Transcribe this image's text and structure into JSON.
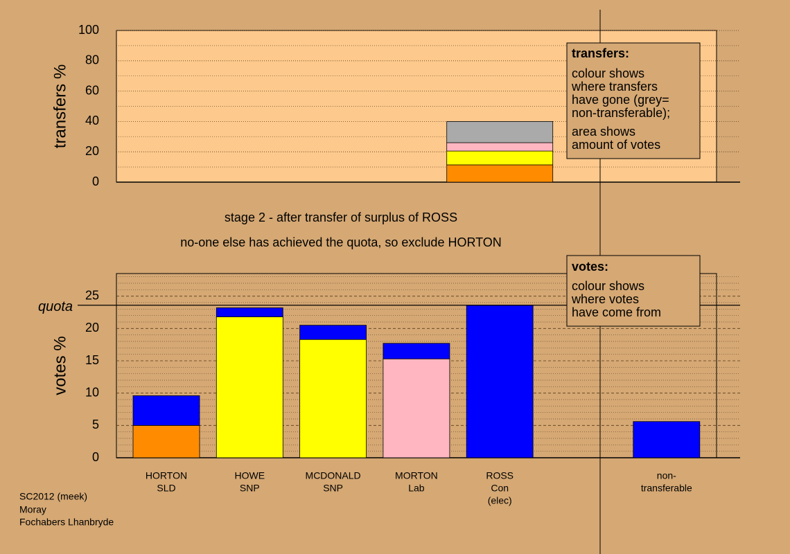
{
  "chart_data": [
    {
      "type": "bar",
      "stacked": true,
      "ylabel": "transfers %",
      "ylim": [
        0,
        100
      ],
      "yticks": [
        0,
        20,
        40,
        60,
        80,
        100
      ],
      "minor_yticks": [
        10,
        30,
        50,
        70,
        90
      ],
      "categories": [
        null,
        null,
        null,
        null,
        null,
        null,
        null
      ],
      "series": [
        {
          "color": "#ff8c00",
          "values": [
            null,
            null,
            null,
            null,
            11.4,
            null,
            null
          ]
        },
        {
          "color": "#ffff00",
          "values": [
            null,
            null,
            null,
            null,
            9.1,
            null,
            null
          ]
        },
        {
          "color": "#ffb6c1",
          "values": [
            null,
            null,
            null,
            null,
            5.5,
            null,
            null
          ]
        },
        {
          "color": "#aaaaaa",
          "values": [
            null,
            null,
            null,
            null,
            14.0,
            null,
            null
          ]
        }
      ],
      "note": {
        "title": "transfers:",
        "paragraphs": [
          [
            "colour shows",
            "where transfers",
            "have gone (grey=",
            "non-transferable);"
          ],
          [
            "area shows",
            "amount of votes"
          ]
        ]
      }
    },
    {
      "type": "bar",
      "stacked": true,
      "ylabel": "votes %",
      "ylim": [
        0,
        28.5
      ],
      "yticks": [
        0,
        5,
        10,
        15,
        20,
        25
      ],
      "minor_yticks": [
        1,
        2,
        3,
        4,
        6,
        7,
        8,
        9,
        11,
        12,
        13,
        14,
        16,
        17,
        18,
        19,
        21,
        22,
        23,
        24,
        26,
        27,
        28
      ],
      "quota": {
        "value": 23.6,
        "label": "quota"
      },
      "categories": [
        [
          "HORTON",
          "SLD"
        ],
        [
          "HOWE",
          "SNP"
        ],
        [
          "MCDONALD",
          "SNP"
        ],
        [
          "MORTON",
          "Lab"
        ],
        [
          "ROSS",
          "Con",
          "(elec)"
        ],
        null,
        [
          "non-",
          "transferable"
        ]
      ],
      "series": [
        {
          "color": "#ff8c00",
          "values": [
            5.0,
            null,
            null,
            null,
            null,
            null,
            null
          ]
        },
        {
          "color": "#ffff00",
          "values": [
            null,
            21.8,
            18.3,
            null,
            null,
            null,
            null
          ]
        },
        {
          "color": "#ffb6c1",
          "values": [
            null,
            null,
            null,
            15.3,
            null,
            null,
            null
          ]
        },
        {
          "color": "#0000ff",
          "values": [
            4.6,
            1.4,
            2.2,
            2.4,
            23.6,
            null,
            5.6
          ]
        }
      ],
      "note": {
        "title": "votes:",
        "paragraphs": [
          [
            "colour shows",
            "where votes",
            "have come from"
          ]
        ]
      }
    }
  ],
  "stage": [
    "stage 2 - after transfer of surplus of ROSS",
    "no-one else has achieved the quota, so exclude HORTON"
  ],
  "footer": [
    "SC2012 (meek)",
    "Moray",
    "Fochabers Lhanbryde"
  ]
}
